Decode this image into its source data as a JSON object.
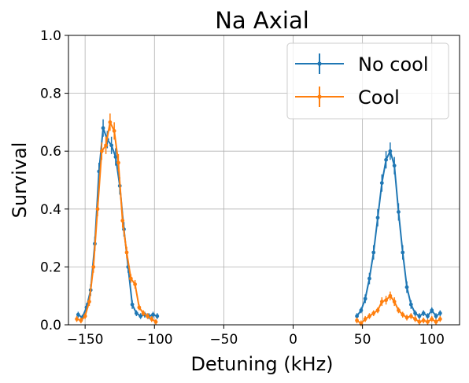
{
  "chart_data": {
    "type": "line",
    "title": "Na Axial",
    "xlabel": "Detuning (kHz)",
    "ylabel": "Survival",
    "xlim": [
      -162,
      120
    ],
    "ylim": [
      0,
      1.0
    ],
    "xticks": [
      -150,
      -100,
      -50,
      0,
      50,
      100
    ],
    "xtick_labels": [
      "−150",
      "−100",
      "−50",
      "0",
      "50",
      "100"
    ],
    "yticks": [
      0.0,
      0.2,
      0.4,
      0.6,
      0.8,
      1.0
    ],
    "ytick_labels": [
      "0.0",
      "0.2",
      "0.4",
      "0.6",
      "0.8",
      "1.0"
    ],
    "grid": true,
    "legend_position": "top-right",
    "series": [
      {
        "name": "No cool",
        "color": "#1f77b4",
        "segments": [
          {
            "x": [
              -155,
              -152,
              -149,
              -146,
              -143,
              -140,
              -137,
              -134,
              -131,
              -128,
              -125,
              -122,
              -119,
              -116,
              -113,
              -110,
              -107,
              -104,
              -101,
              -98
            ],
            "y": [
              0.035,
              0.025,
              0.06,
              0.12,
              0.28,
              0.53,
              0.68,
              0.64,
              0.62,
              0.58,
              0.48,
              0.33,
              0.2,
              0.07,
              0.04,
              0.03,
              0.035,
              0.03,
              0.035,
              0.03
            ],
            "err": [
              0.01,
              0.01,
              0.015,
              0.02,
              0.025,
              0.03,
              0.03,
              0.03,
              0.03,
              0.03,
              0.03,
              0.025,
              0.02,
              0.015,
              0.01,
              0.01,
              0.01,
              0.01,
              0.01,
              0.01
            ]
          },
          {
            "x": [
              46,
              49,
              52,
              55,
              58,
              61,
              64,
              67,
              70,
              73,
              76,
              79,
              82,
              85,
              88,
              91,
              94,
              97,
              100,
              103,
              106
            ],
            "y": [
              0.03,
              0.05,
              0.09,
              0.16,
              0.25,
              0.37,
              0.49,
              0.57,
              0.6,
              0.55,
              0.39,
              0.25,
              0.13,
              0.07,
              0.04,
              0.03,
              0.04,
              0.03,
              0.05,
              0.03,
              0.04
            ],
            "err": [
              0.01,
              0.01,
              0.015,
              0.02,
              0.025,
              0.03,
              0.03,
              0.03,
              0.03,
              0.03,
              0.03,
              0.025,
              0.02,
              0.015,
              0.01,
              0.01,
              0.01,
              0.01,
              0.01,
              0.01,
              0.01
            ]
          }
        ]
      },
      {
        "name": "Cool",
        "color": "#ff7f0e",
        "segments": [
          {
            "x": [
              -156,
              -153,
              -150,
              -147,
              -144,
              -141,
              -138,
              -135,
              -132,
              -129,
              -126,
              -123,
              -120,
              -117,
              -114,
              -111,
              -108,
              -105,
              -102,
              -99
            ],
            "y": [
              0.02,
              0.015,
              0.03,
              0.08,
              0.2,
              0.4,
              0.6,
              0.62,
              0.7,
              0.67,
              0.56,
              0.36,
              0.25,
              0.16,
              0.14,
              0.06,
              0.04,
              0.03,
              0.02,
              0.01
            ],
            "err": [
              0.01,
              0.01,
              0.01,
              0.015,
              0.02,
              0.025,
              0.03,
              0.03,
              0.03,
              0.03,
              0.03,
              0.025,
              0.02,
              0.015,
              0.015,
              0.01,
              0.01,
              0.01,
              0.01,
              0.01
            ]
          },
          {
            "x": [
              46,
              49,
              52,
              55,
              58,
              61,
              64,
              67,
              70,
              73,
              76,
              79,
              82,
              85,
              88,
              91,
              94,
              97,
              100,
              103,
              106
            ],
            "y": [
              0.015,
              0.005,
              0.02,
              0.03,
              0.04,
              0.05,
              0.08,
              0.085,
              0.1,
              0.08,
              0.05,
              0.035,
              0.025,
              0.03,
              0.02,
              0.01,
              0.015,
              0.01,
              0.02,
              0.01,
              0.02
            ],
            "err": [
              0.01,
              0.01,
              0.01,
              0.01,
              0.01,
              0.01,
              0.015,
              0.015,
              0.015,
              0.015,
              0.01,
              0.01,
              0.01,
              0.01,
              0.01,
              0.01,
              0.01,
              0.01,
              0.01,
              0.01,
              0.01
            ]
          }
        ]
      }
    ]
  }
}
